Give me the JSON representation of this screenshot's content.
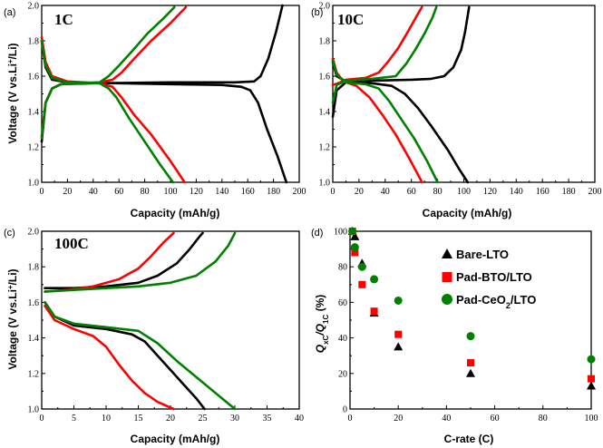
{
  "chart_data": [
    {
      "type": "line",
      "panel": "(a)",
      "rate": "1C",
      "xlabel": "Capacity (mAh/g)",
      "ylabel_main": "Voltage (V vs.Li",
      "ylabel_sup": "+",
      "ylabel_end": "/Li)",
      "xlim": [
        0,
        200
      ],
      "ylim": [
        1.0,
        2.0
      ],
      "xticks": [
        0,
        20,
        40,
        60,
        80,
        100,
        120,
        140,
        160,
        180,
        200
      ],
      "yticks": [
        1.0,
        1.2,
        1.4,
        1.6,
        1.8,
        2.0
      ],
      "series": [
        {
          "name": "Bare-LTO",
          "color": "#000000",
          "discharge": [
            [
              0,
              1.8
            ],
            [
              3,
              1.65
            ],
            [
              8,
              1.58
            ],
            [
              20,
              1.565
            ],
            [
              60,
              1.56
            ],
            [
              100,
              1.555
            ],
            [
              140,
              1.55
            ],
            [
              155,
              1.54
            ],
            [
              162,
              1.52
            ],
            [
              168,
              1.45
            ],
            [
              175,
              1.3
            ],
            [
              183,
              1.15
            ],
            [
              190,
              1.0
            ]
          ],
          "charge": [
            [
              0,
              1.23
            ],
            [
              3,
              1.45
            ],
            [
              8,
              1.53
            ],
            [
              15,
              1.555
            ],
            [
              40,
              1.56
            ],
            [
              100,
              1.565
            ],
            [
              150,
              1.565
            ],
            [
              165,
              1.57
            ],
            [
              170,
              1.6
            ],
            [
              176,
              1.7
            ],
            [
              182,
              1.85
            ],
            [
              187,
              2.0
            ]
          ]
        },
        {
          "name": "Pad-BTO/LTO",
          "color": "#ff0000",
          "discharge": [
            [
              0,
              1.82
            ],
            [
              3,
              1.68
            ],
            [
              8,
              1.6
            ],
            [
              20,
              1.57
            ],
            [
              45,
              1.56
            ],
            [
              55,
              1.54
            ],
            [
              62,
              1.48
            ],
            [
              72,
              1.38
            ],
            [
              85,
              1.27
            ],
            [
              100,
              1.12
            ],
            [
              111,
              1.0
            ]
          ],
          "charge": [
            [
              0,
              1.26
            ],
            [
              3,
              1.45
            ],
            [
              8,
              1.53
            ],
            [
              15,
              1.555
            ],
            [
              45,
              1.565
            ],
            [
              55,
              1.58
            ],
            [
              62,
              1.62
            ],
            [
              72,
              1.7
            ],
            [
              85,
              1.8
            ],
            [
              100,
              1.9
            ],
            [
              112,
              1.99
            ]
          ]
        },
        {
          "name": "Pad-CeO2/LTO",
          "color": "#008000",
          "discharge": [
            [
              0,
              1.8
            ],
            [
              3,
              1.66
            ],
            [
              8,
              1.59
            ],
            [
              20,
              1.565
            ],
            [
              45,
              1.56
            ],
            [
              52,
              1.53
            ],
            [
              58,
              1.48
            ],
            [
              68,
              1.36
            ],
            [
              80,
              1.23
            ],
            [
              92,
              1.1
            ],
            [
              102,
              1.0
            ]
          ],
          "charge": [
            [
              0,
              1.25
            ],
            [
              3,
              1.45
            ],
            [
              8,
              1.53
            ],
            [
              15,
              1.555
            ],
            [
              45,
              1.565
            ],
            [
              52,
              1.6
            ],
            [
              60,
              1.66
            ],
            [
              70,
              1.74
            ],
            [
              82,
              1.84
            ],
            [
              95,
              1.93
            ],
            [
              103,
              1.99
            ]
          ]
        }
      ]
    },
    {
      "type": "line",
      "panel": "(b)",
      "rate": "10C",
      "xlabel": "Capacity (mAh/g)",
      "ylabel_main": "",
      "ylabel_sup": "",
      "ylabel_end": "",
      "xlim": [
        0,
        200
      ],
      "ylim": [
        1.0,
        2.0
      ],
      "xticks": [
        0,
        20,
        40,
        60,
        80,
        100,
        120,
        140,
        160,
        180,
        200
      ],
      "yticks": [
        1.0,
        1.2,
        1.4,
        1.6,
        1.8,
        2.0
      ],
      "series": [
        {
          "name": "Bare-LTO",
          "color": "#000000",
          "discharge": [
            [
              0,
              1.68
            ],
            [
              3,
              1.6
            ],
            [
              10,
              1.57
            ],
            [
              30,
              1.56
            ],
            [
              45,
              1.545
            ],
            [
              55,
              1.5
            ],
            [
              65,
              1.42
            ],
            [
              75,
              1.32
            ],
            [
              88,
              1.18
            ],
            [
              96,
              1.08
            ],
            [
              103,
              1.0
            ]
          ],
          "charge": [
            [
              0,
              1.37
            ],
            [
              3,
              1.52
            ],
            [
              10,
              1.565
            ],
            [
              30,
              1.575
            ],
            [
              60,
              1.58
            ],
            [
              75,
              1.585
            ],
            [
              85,
              1.6
            ],
            [
              92,
              1.65
            ],
            [
              98,
              1.75
            ],
            [
              101,
              1.85
            ],
            [
              104,
              1.99
            ]
          ]
        },
        {
          "name": "Pad-BTO/LTO",
          "color": "#ff0000",
          "discharge": [
            [
              0,
              1.7
            ],
            [
              3,
              1.62
            ],
            [
              8,
              1.57
            ],
            [
              18,
              1.545
            ],
            [
              28,
              1.48
            ],
            [
              38,
              1.38
            ],
            [
              48,
              1.27
            ],
            [
              58,
              1.14
            ],
            [
              66,
              1.03
            ],
            [
              68,
              1.0
            ]
          ],
          "charge": [
            [
              0,
              1.55
            ],
            [
              4,
              1.56
            ],
            [
              10,
              1.58
            ],
            [
              25,
              1.59
            ],
            [
              35,
              1.62
            ],
            [
              42,
              1.68
            ],
            [
              50,
              1.76
            ],
            [
              58,
              1.86
            ],
            [
              64,
              1.94
            ],
            [
              68,
              1.99
            ]
          ]
        },
        {
          "name": "Pad-CeO2/LTO",
          "color": "#008000",
          "discharge": [
            [
              0,
              1.69
            ],
            [
              3,
              1.61
            ],
            [
              10,
              1.565
            ],
            [
              25,
              1.555
            ],
            [
              35,
              1.53
            ],
            [
              43,
              1.46
            ],
            [
              52,
              1.36
            ],
            [
              62,
              1.25
            ],
            [
              72,
              1.12
            ],
            [
              80,
              1.0
            ]
          ],
          "charge": [
            [
              0,
              1.45
            ],
            [
              3,
              1.55
            ],
            [
              10,
              1.575
            ],
            [
              30,
              1.585
            ],
            [
              48,
              1.6
            ],
            [
              56,
              1.67
            ],
            [
              63,
              1.75
            ],
            [
              70,
              1.84
            ],
            [
              76,
              1.93
            ],
            [
              79,
              1.99
            ]
          ]
        }
      ]
    },
    {
      "type": "line",
      "panel": "(c)",
      "rate": "100C",
      "xlabel": "Capacity (mAh/g)",
      "ylabel_main": "Voltage (V vs.Li",
      "ylabel_sup": "+",
      "ylabel_end": "/Li)",
      "xlim": [
        0,
        40
      ],
      "ylim": [
        1.0,
        2.0
      ],
      "xticks": [
        0,
        5,
        10,
        15,
        20,
        25,
        30,
        35,
        40
      ],
      "yticks": [
        1.0,
        1.2,
        1.4,
        1.6,
        1.8,
        2.0
      ],
      "series": [
        {
          "name": "Bare-LTO",
          "color": "#000000",
          "discharge": [
            [
              0.5,
              1.6
            ],
            [
              2,
              1.52
            ],
            [
              5,
              1.47
            ],
            [
              10,
              1.45
            ],
            [
              14,
              1.42
            ],
            [
              16,
              1.38
            ],
            [
              18,
              1.3
            ],
            [
              20,
              1.22
            ],
            [
              22,
              1.14
            ],
            [
              24,
              1.06
            ],
            [
              25.3,
              1.0
            ]
          ],
          "charge": [
            [
              0.5,
              1.68
            ],
            [
              5,
              1.68
            ],
            [
              10,
              1.69
            ],
            [
              15,
              1.71
            ],
            [
              18,
              1.75
            ],
            [
              21,
              1.82
            ],
            [
              23,
              1.9
            ],
            [
              24.5,
              1.97
            ],
            [
              25,
              1.99
            ]
          ]
        },
        {
          "name": "Pad-BTO/LTO",
          "color": "#ff0000",
          "discharge": [
            [
              0.5,
              1.58
            ],
            [
              2,
              1.5
            ],
            [
              5,
              1.45
            ],
            [
              8,
              1.41
            ],
            [
              10,
              1.35
            ],
            [
              12,
              1.25
            ],
            [
              14,
              1.16
            ],
            [
              16,
              1.09
            ],
            [
              18,
              1.04
            ],
            [
              20.5,
              1.0
            ]
          ],
          "charge": [
            [
              0.5,
              1.66
            ],
            [
              4,
              1.67
            ],
            [
              8,
              1.69
            ],
            [
              12,
              1.73
            ],
            [
              15,
              1.79
            ],
            [
              17,
              1.86
            ],
            [
              19,
              1.94
            ],
            [
              20.5,
              1.99
            ]
          ]
        },
        {
          "name": "Pad-CeO2/LTO",
          "color": "#008000",
          "discharge": [
            [
              0.5,
              1.6
            ],
            [
              2,
              1.52
            ],
            [
              5,
              1.48
            ],
            [
              10,
              1.46
            ],
            [
              15,
              1.44
            ],
            [
              18,
              1.37
            ],
            [
              21,
              1.27
            ],
            [
              24,
              1.18
            ],
            [
              27,
              1.09
            ],
            [
              30,
              1.0
            ]
          ],
          "charge": [
            [
              0.5,
              1.66
            ],
            [
              5,
              1.67
            ],
            [
              10,
              1.68
            ],
            [
              15,
              1.69
            ],
            [
              20,
              1.71
            ],
            [
              24,
              1.75
            ],
            [
              27,
              1.83
            ],
            [
              29,
              1.92
            ],
            [
              30,
              1.99
            ]
          ]
        }
      ]
    },
    {
      "type": "scatter",
      "panel": "(d)",
      "xlabel": "C-rate (C)",
      "ylabel_a": "Q",
      "ylabel_a_sub": "xC",
      "ylabel_b": "/Q",
      "ylabel_b_sub": "1C",
      "ylabel_c": " (%)",
      "xlim": [
        0,
        100
      ],
      "ylim": [
        0,
        100
      ],
      "xticks": [
        0,
        20,
        40,
        60,
        80,
        100
      ],
      "yticks": [
        0,
        20,
        40,
        60,
        80,
        100
      ],
      "series": [
        {
          "name": "Bare-LTO",
          "marker": "triangle",
          "color": "#000000",
          "x": [
            1,
            2,
            5,
            10,
            20,
            50,
            100
          ],
          "y": [
            100,
            97,
            82,
            54,
            35,
            20,
            13
          ]
        },
        {
          "name": "Pad-BTO/LTO",
          "marker": "square",
          "color": "#ff0000",
          "x": [
            1,
            2,
            5,
            10,
            20,
            50,
            100
          ],
          "y": [
            100,
            88,
            70,
            55,
            42,
            26,
            17
          ]
        },
        {
          "name": "Pad-CeO2/LTO",
          "marker": "circle",
          "color": "#008000",
          "x": [
            1,
            2,
            5,
            10,
            20,
            50,
            100
          ],
          "y": [
            100,
            91,
            80,
            73,
            61,
            41,
            28
          ]
        }
      ],
      "legend": [
        {
          "label": "Bare-LTO",
          "sub": "",
          "tail": ""
        },
        {
          "label": "Pad-BTO/LTO",
          "sub": "",
          "tail": ""
        },
        {
          "label": "Pad-CeO",
          "sub": "2",
          "tail": "/LTO"
        }
      ]
    }
  ]
}
